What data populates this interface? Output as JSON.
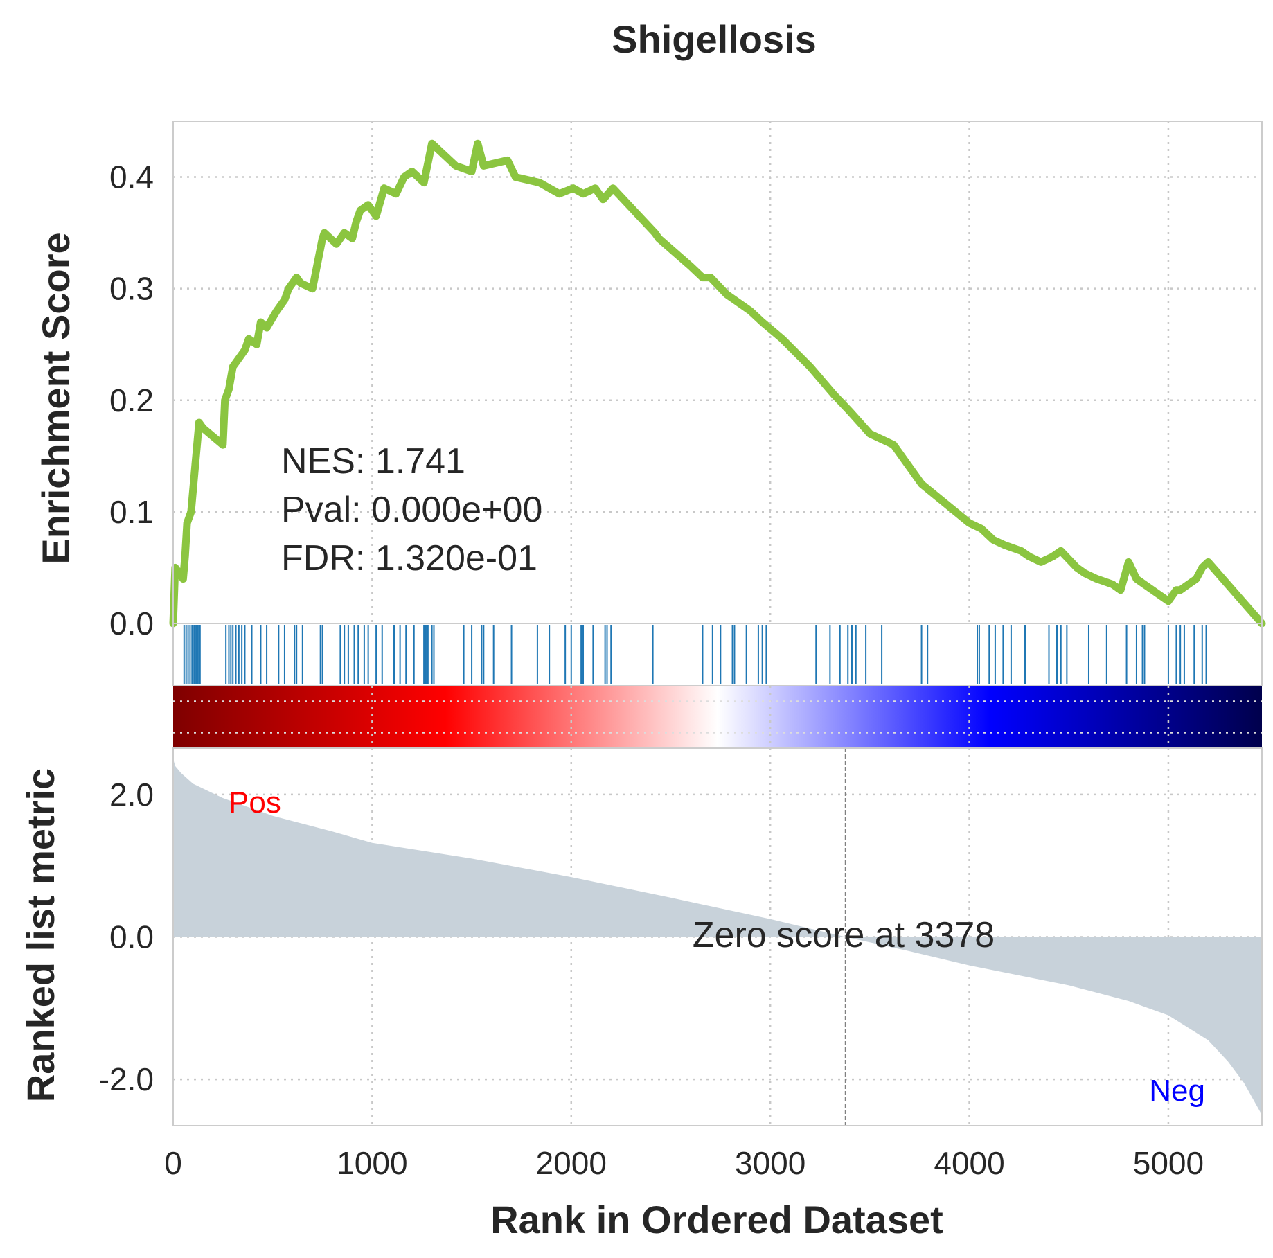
{
  "chart_data": {
    "type": "line",
    "title": "Shigellosis",
    "xlabel": "Rank in Ordered Dataset",
    "xlim": [
      0,
      5470
    ],
    "x_ticks": [
      "0",
      "1000",
      "2000",
      "3000",
      "4000",
      "5000"
    ],
    "x_tick_values": [
      0,
      1000,
      2000,
      3000,
      4000,
      5000
    ],
    "grid": true,
    "enrichment": {
      "ylabel": "Enrichment Score",
      "ylim": [
        0,
        0.45
      ],
      "y_ticks": [
        "0.0",
        "0.1",
        "0.2",
        "0.3",
        "0.4"
      ],
      "y_tick_values": [
        0,
        0.1,
        0.2,
        0.3,
        0.4
      ],
      "line_color": "#8bc540",
      "x": [
        0,
        10,
        50,
        60,
        70,
        90,
        110,
        130,
        150,
        250,
        260,
        280,
        300,
        320,
        360,
        380,
        420,
        440,
        470,
        520,
        560,
        580,
        620,
        640,
        700,
        750,
        760,
        820,
        860,
        900,
        920,
        940,
        980,
        1020,
        1060,
        1120,
        1160,
        1200,
        1260,
        1300,
        1420,
        1500,
        1530,
        1560,
        1680,
        1720,
        1840,
        1940,
        2010,
        2060,
        2120,
        2160,
        2210,
        2420,
        2440,
        2600,
        2660,
        2700,
        2780,
        2820,
        2900,
        2960,
        3060,
        3200,
        3320,
        3400,
        3500,
        3620,
        3680,
        3760,
        4000,
        4060,
        4120,
        4180,
        4260,
        4300,
        4360,
        4420,
        4460,
        4540,
        4580,
        4640,
        4720,
        4760,
        4800,
        4840,
        5000,
        5040,
        5060,
        5100,
        5140,
        5170,
        5200,
        5470
      ],
      "y": [
        0,
        0.05,
        0.04,
        0.06,
        0.09,
        0.1,
        0.14,
        0.18,
        0.175,
        0.16,
        0.2,
        0.21,
        0.23,
        0.235,
        0.245,
        0.255,
        0.25,
        0.27,
        0.265,
        0.28,
        0.29,
        0.3,
        0.31,
        0.305,
        0.3,
        0.345,
        0.35,
        0.34,
        0.35,
        0.345,
        0.36,
        0.37,
        0.375,
        0.365,
        0.39,
        0.385,
        0.4,
        0.405,
        0.395,
        0.43,
        0.41,
        0.405,
        0.43,
        0.41,
        0.415,
        0.4,
        0.395,
        0.385,
        0.39,
        0.385,
        0.39,
        0.38,
        0.39,
        0.35,
        0.345,
        0.32,
        0.31,
        0.31,
        0.295,
        0.29,
        0.28,
        0.27,
        0.255,
        0.23,
        0.205,
        0.19,
        0.17,
        0.16,
        0.145,
        0.125,
        0.09,
        0.085,
        0.075,
        0.07,
        0.065,
        0.06,
        0.055,
        0.06,
        0.065,
        0.05,
        0.045,
        0.04,
        0.035,
        0.03,
        0.055,
        0.04,
        0.02,
        0.03,
        0.03,
        0.035,
        0.04,
        0.05,
        0.055,
        0
      ]
    },
    "hits": {
      "color": "#1f77b4",
      "positions": [
        55,
        65,
        75,
        85,
        95,
        105,
        115,
        125,
        135,
        265,
        280,
        290,
        300,
        315,
        330,
        345,
        360,
        395,
        440,
        470,
        530,
        560,
        610,
        620,
        650,
        740,
        750,
        840,
        860,
        880,
        910,
        930,
        960,
        980,
        1020,
        1050,
        1110,
        1140,
        1170,
        1210,
        1260,
        1270,
        1280,
        1300,
        1310,
        1460,
        1500,
        1550,
        1560,
        1610,
        1700,
        1830,
        1890,
        1970,
        2000,
        2050,
        2060,
        2110,
        2170,
        2180,
        2200,
        2410,
        2660,
        2710,
        2750,
        2810,
        2820,
        2880,
        2940,
        2960,
        2980,
        3230,
        3300,
        3350,
        3390,
        3410,
        3430,
        3480,
        3560,
        3760,
        3790,
        4040,
        4050,
        4100,
        4130,
        4170,
        4210,
        4280,
        4400,
        4440,
        4460,
        4490,
        4600,
        4690,
        4790,
        4840,
        4870,
        4880,
        5000,
        5040,
        5060,
        5080,
        5130,
        5170,
        5190
      ]
    },
    "heatmap": {
      "colormap": "seismic",
      "stops": [
        "#7f0000",
        "#ff0000",
        "#ffffff",
        "#0000ff",
        "#00004c"
      ]
    },
    "ranked": {
      "ylabel": "Ranked list metric",
      "ylim": [
        -2.65,
        2.65
      ],
      "y_ticks": [
        "2.0",
        "0.0",
        "-2.0"
      ],
      "y_tick_values": [
        2,
        0,
        -2
      ],
      "fill_color": "#c8d2da",
      "x": [
        0,
        10,
        40,
        100,
        250,
        500,
        800,
        1000,
        1500,
        2000,
        2500,
        3000,
        3378,
        3700,
        4000,
        4500,
        4800,
        5000,
        5200,
        5300,
        5380,
        5430,
        5460,
        5470
      ],
      "y": [
        2.5,
        2.4,
        2.3,
        2.15,
        1.95,
        1.7,
        1.48,
        1.32,
        1.1,
        0.84,
        0.55,
        0.25,
        0,
        -0.2,
        -0.4,
        -0.68,
        -0.9,
        -1.1,
        -1.45,
        -1.75,
        -2.05,
        -2.3,
        -2.45,
        -2.5
      ],
      "zero_score_label": "Zero score at 3378",
      "zero_x": 3378,
      "pos_label": "Pos",
      "neg_label": "Neg"
    },
    "stats": {
      "nes": "NES: 1.741",
      "pval": "Pval: 0.000e+00",
      "fdr": "FDR: 1.320e-01"
    }
  }
}
